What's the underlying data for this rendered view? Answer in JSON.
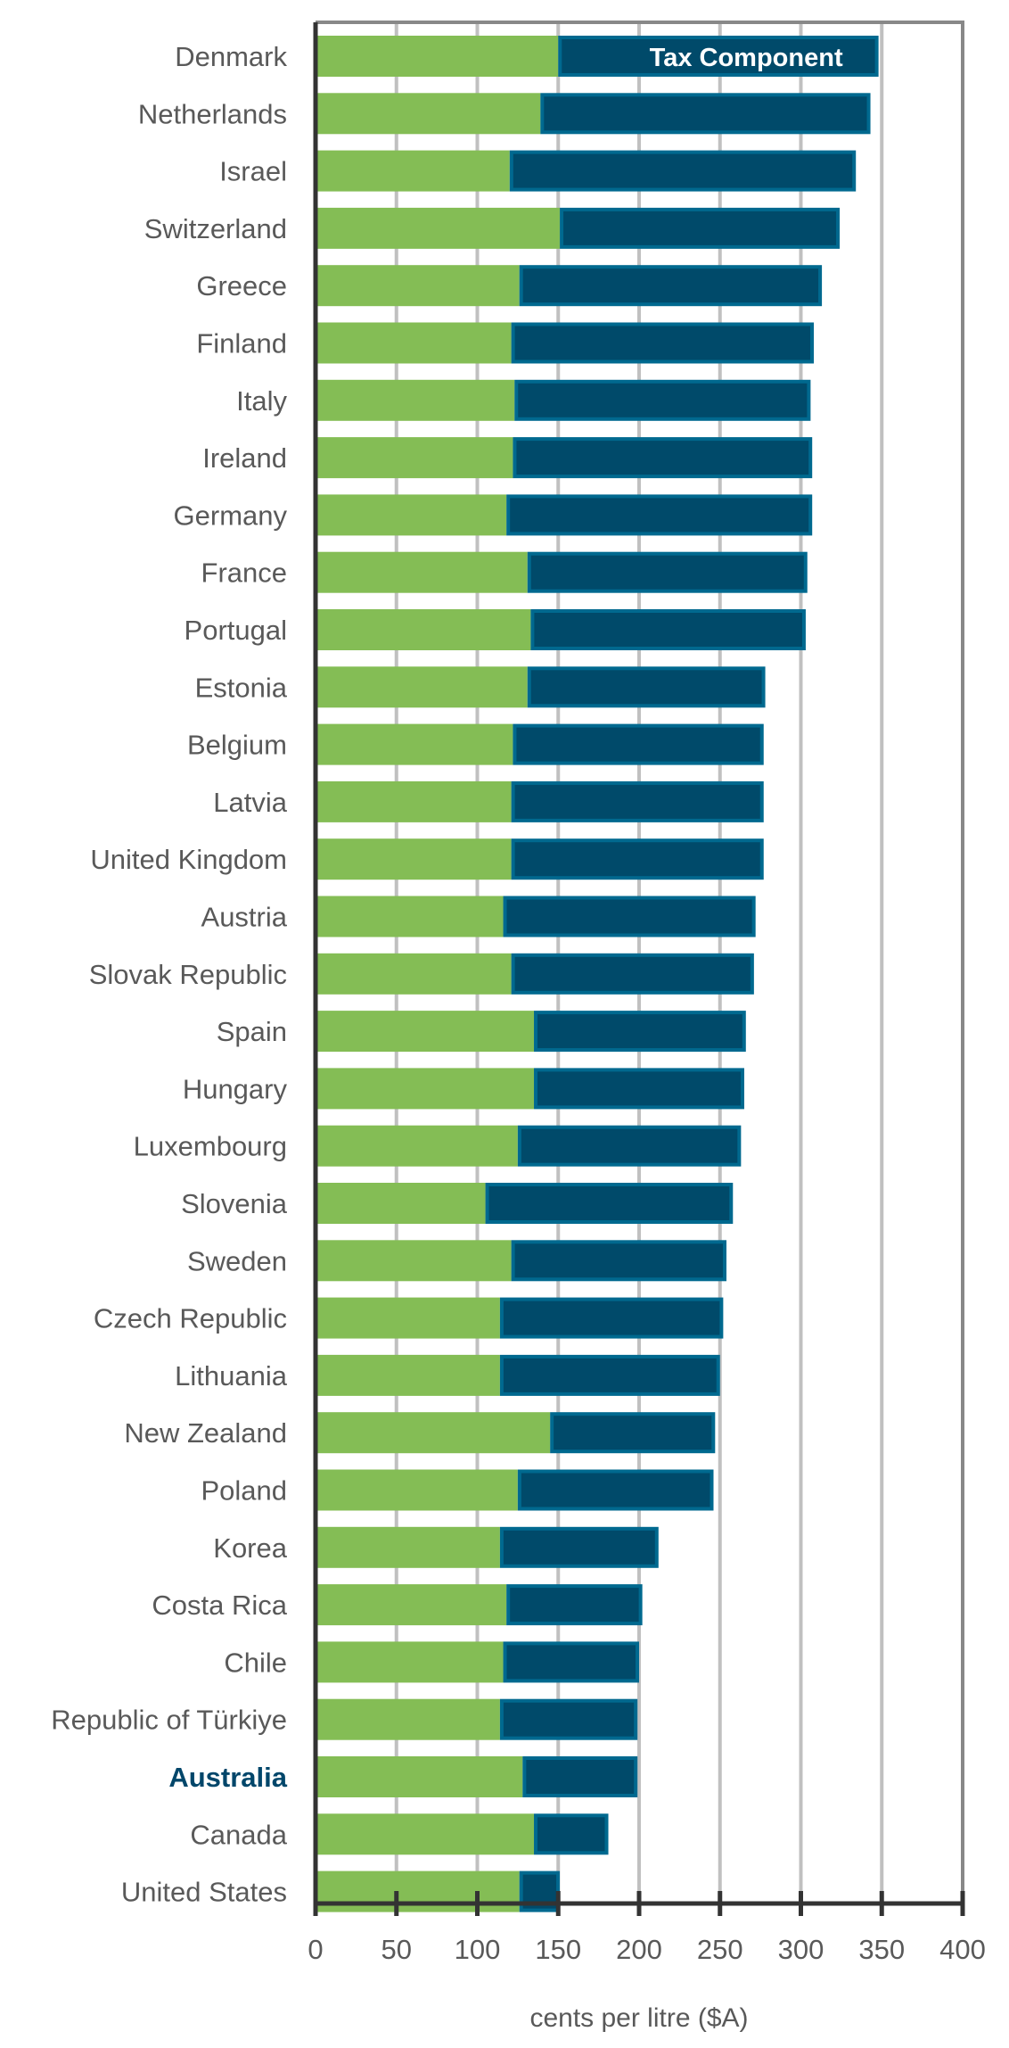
{
  "chart_data": {
    "type": "bar",
    "orientation": "horizontal",
    "stacked": true,
    "categories": [
      "Denmark",
      "Netherlands",
      "Israel",
      "Switzerland",
      "Greece",
      "Finland",
      "Italy",
      "Ireland",
      "Germany",
      "France",
      "Portugal",
      "Estonia",
      "Belgium",
      "Latvia",
      "United Kingdom",
      "Austria",
      "Slovak Republic",
      "Spain",
      "Hungary",
      "Luxembourg",
      "Slovenia",
      "Sweden",
      "Czech Republic",
      "Lithuania",
      "New Zealand",
      "Poland",
      "Korea",
      "Costa Rica",
      "Chile",
      "Republic of Türkiye",
      "Australia",
      "Canada",
      "United States"
    ],
    "highlight_category": "Australia",
    "series": [
      {
        "values": [
          150,
          139,
          120,
          151,
          126,
          121,
          123,
          122,
          118,
          131,
          133,
          131,
          122,
          121,
          121,
          116,
          121,
          135,
          135,
          125,
          105,
          121,
          114,
          114,
          145,
          125,
          114,
          118,
          116,
          114,
          128,
          135,
          126
        ],
        "color": "#84bd55"
      },
      {
        "name": "Tax Component",
        "values": [
          198,
          204,
          214,
          173,
          187,
          187,
          183,
          185,
          189,
          173,
          170,
          147,
          155,
          156,
          156,
          156,
          150,
          131,
          130,
          138,
          153,
          133,
          138,
          136,
          102,
          121,
          98,
          84,
          84,
          85,
          71,
          46,
          25
        ],
        "color": "#004a6a"
      }
    ],
    "totals": [
      348,
      343,
      334,
      324,
      313,
      308,
      306,
      307,
      307,
      304,
      303,
      278,
      277,
      277,
      277,
      272,
      271,
      266,
      265,
      263,
      258,
      254,
      252,
      250,
      247,
      246,
      212,
      202,
      200,
      199,
      199,
      181,
      151
    ],
    "xlabel": "cents per litre ($A)",
    "ylabel": "",
    "xlim": [
      0,
      400
    ],
    "xticks": [
      "0",
      "50",
      "100",
      "150",
      "200",
      "250",
      "300",
      "350",
      "400"
    ],
    "grid": "vertical",
    "legend": "inline label on top bar",
    "colors": {
      "label": "#595959",
      "highlight_label": "#00466a",
      "tax_border": "#00698f",
      "grid": "#c0c0c0",
      "axis": "#333333"
    }
  }
}
